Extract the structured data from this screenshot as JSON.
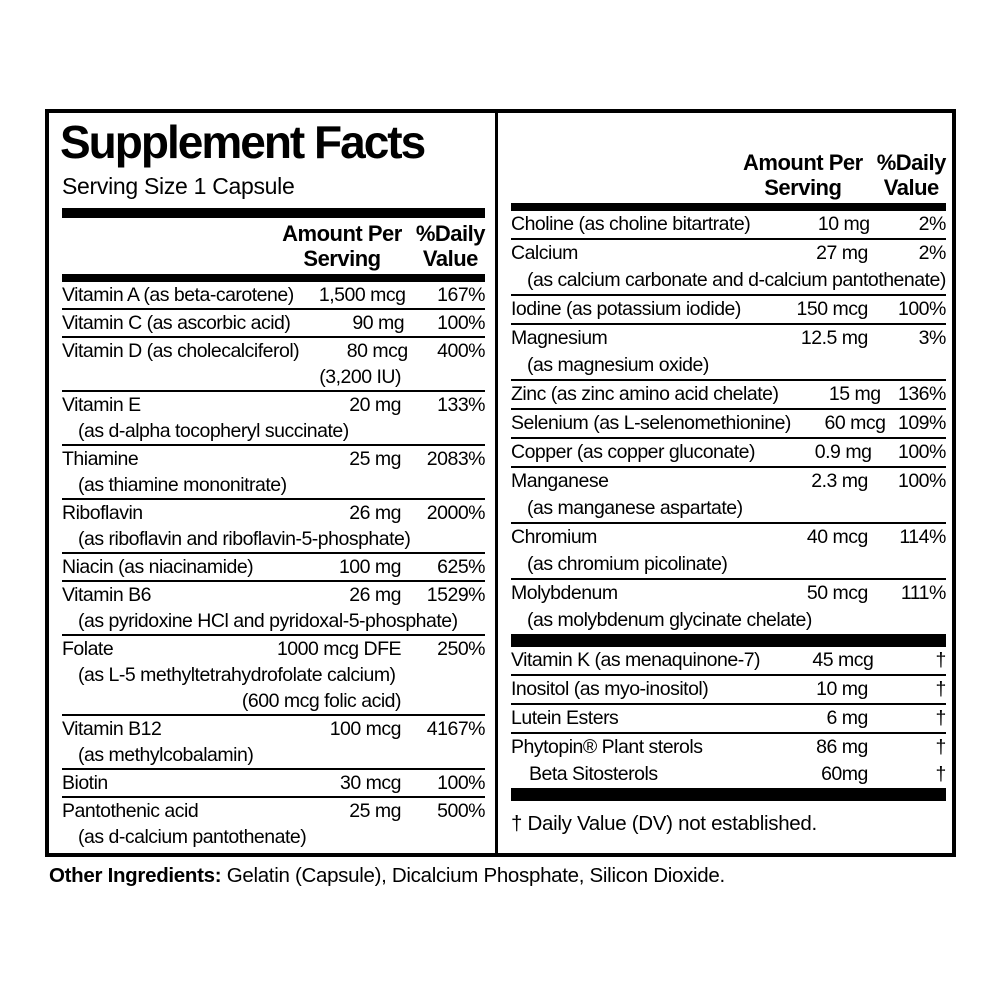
{
  "colors": {
    "ink": "#000000",
    "paper": "#ffffff"
  },
  "title": "Supplement Facts",
  "serving_size": "Serving Size 1 Capsule",
  "header": {
    "amount_line1": "Amount Per",
    "amount_line2": "Serving",
    "daily_line1": "%Daily",
    "daily_line2": "Value"
  },
  "left_rows": [
    {
      "name": "Vitamin A (as beta-carotene)",
      "amount": "1,500 mcg",
      "dv": "167%"
    },
    {
      "name": "Vitamin C (as ascorbic acid)",
      "amount": "90 mg",
      "dv": "100%"
    },
    {
      "name": "Vitamin D (as cholecalciferol)",
      "amount": "80 mcg",
      "dv": "400%",
      "amount_note": "(3,200 IU)"
    },
    {
      "name": "Vitamin E",
      "amount": "20 mg",
      "dv": "133%",
      "subs": [
        "(as d-alpha tocopheryl succinate)"
      ]
    },
    {
      "name": "Thiamine",
      "amount": "25 mg",
      "dv": "2083%",
      "subs": [
        "(as thiamine mononitrate)"
      ]
    },
    {
      "name": "Riboflavin",
      "amount": "26 mg",
      "dv": "2000%",
      "subs": [
        "(as riboflavin and riboflavin-5-phosphate)"
      ]
    },
    {
      "name": "Niacin (as niacinamide)",
      "amount": "100 mg",
      "dv": "625%"
    },
    {
      "name": "Vitamin B6",
      "amount": "26 mg",
      "dv": "1529%",
      "subs": [
        "(as pyridoxine HCl and pyridoxal-5-phosphate)"
      ]
    },
    {
      "name": "Folate",
      "amount": "1000 mcg DFE",
      "dv": "250%",
      "subs": [
        "(as L-5 methyltetrahydrofolate calcium)"
      ],
      "amount_note": "(600 mcg folic acid)"
    },
    {
      "name": "Vitamin B12",
      "amount": "100 mcg",
      "dv": "4167%",
      "subs": [
        "(as methylcobalamin)"
      ]
    },
    {
      "name": "Biotin",
      "amount": "30 mcg",
      "dv": "100%"
    },
    {
      "name": "Pantothenic acid",
      "amount": "25 mg",
      "dv": "500%",
      "subs": [
        "(as d-calcium pantothenate)"
      ]
    }
  ],
  "right_top_rows": [
    {
      "name": "Choline (as choline bitartrate)",
      "amount": "10 mg",
      "dv": "2%"
    },
    {
      "name": "Calcium",
      "amount": "27 mg",
      "dv": "2%",
      "subs": [
        "(as calcium carbonate and d-calcium pantothenate)"
      ]
    },
    {
      "name": "Iodine (as potassium iodide)",
      "amount": "150 mcg",
      "dv": "100%"
    },
    {
      "name": "Magnesium",
      "amount": "12.5 mg",
      "dv": "3%",
      "subs": [
        "(as magnesium oxide)"
      ]
    },
    {
      "name": "Zinc (as zinc amino acid chelate)",
      "amount": "15 mg",
      "dv": "136%"
    },
    {
      "name": "Selenium (as L-selenomethionine)",
      "amount": "60 mcg",
      "dv": "109%"
    },
    {
      "name": "Copper (as copper gluconate)",
      "amount": "0.9 mg",
      "dv": "100%"
    },
    {
      "name": "Manganese",
      "amount": "2.3 mg",
      "dv": "100%",
      "subs": [
        "(as manganese aspartate)"
      ]
    },
    {
      "name": "Chromium",
      "amount": "40 mcg",
      "dv": "114%",
      "subs": [
        "(as chromium picolinate)"
      ]
    },
    {
      "name": "Molybdenum",
      "amount": "50 mcg",
      "dv": "111%",
      "subs": [
        "(as molybdenum glycinate chelate)"
      ]
    }
  ],
  "right_bottom_rows": [
    {
      "name": "Vitamin K (as menaquinone-7)",
      "amount": "45 mcg",
      "dv": "†"
    },
    {
      "name": "Inositol (as myo-inositol)",
      "amount": "10 mg",
      "dv": "†"
    },
    {
      "name": "Lutein Esters",
      "amount": "6 mg",
      "dv": "†"
    },
    {
      "name": "Phytopin® Plant sterols",
      "amount": "86 mg",
      "dv": "†"
    },
    {
      "name": "Beta Sitosterols",
      "amount": "60mg",
      "dv": "†",
      "indent": true,
      "nosep": true
    }
  ],
  "footnote": "† Daily Value (DV) not established.",
  "other_ingredients": {
    "label": "Other Ingredients:",
    "text": " Gelatin (Capsule), Dicalcium Phosphate, Silicon Dioxide."
  }
}
